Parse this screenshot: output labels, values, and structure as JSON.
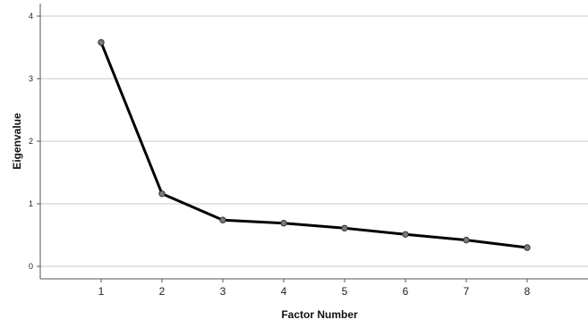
{
  "chart_data": {
    "type": "line",
    "title": "",
    "xlabel": "Factor Number",
    "ylabel": "Eigenvalue",
    "x": [
      1,
      2,
      3,
      4,
      5,
      6,
      7,
      8
    ],
    "series": [
      {
        "values": [
          3.58,
          1.16,
          0.74,
          0.69,
          0.61,
          0.51,
          0.42,
          0.3
        ]
      }
    ],
    "xlim": [
      0,
      9
    ],
    "ylim": [
      -0.2,
      4.2
    ],
    "yticks": [
      0,
      1,
      2,
      3,
      4
    ],
    "xticks": [
      1,
      2,
      3,
      4,
      5,
      6,
      7,
      8
    ],
    "grid": "horizontal",
    "legend": "none",
    "line_color": "#000000",
    "marker_color": "#7a7a7a"
  }
}
